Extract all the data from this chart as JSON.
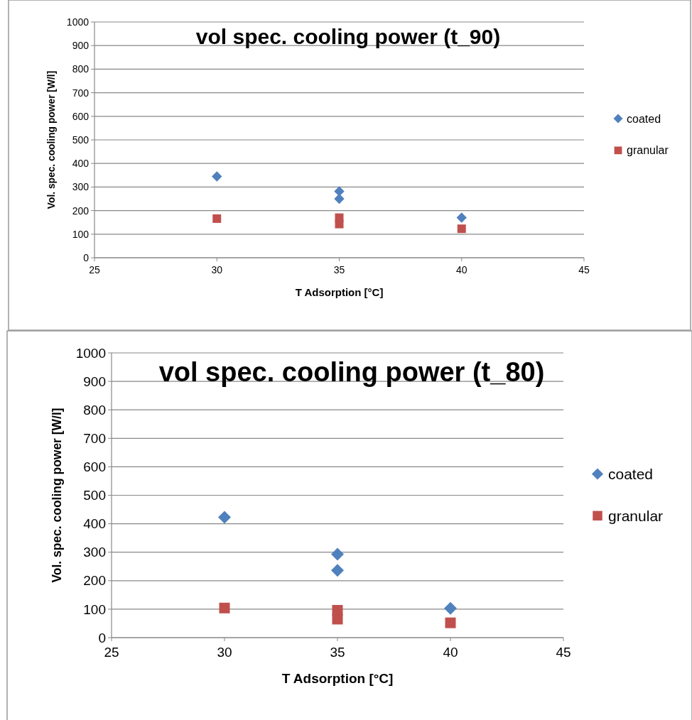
{
  "chart_data": [
    {
      "type": "scatter",
      "title": "vol spec. cooling power (t_90)",
      "xlabel": "T Adsorption [°C]",
      "ylabel": "Vol. spec. cooling power [W/l]",
      "xlim": [
        25,
        45
      ],
      "xticks": [
        25,
        30,
        35,
        40,
        45
      ],
      "ylim": [
        0,
        1000
      ],
      "yticks": [
        0,
        100,
        200,
        300,
        400,
        500,
        600,
        700,
        800,
        900,
        1000
      ],
      "grid": "y",
      "legend": "right",
      "series": [
        {
          "name": "coated",
          "color": "#4f81bd",
          "marker": "diamond",
          "x": [
            30,
            35,
            35,
            40
          ],
          "values": [
            345,
            282,
            250,
            170
          ]
        },
        {
          "name": "granular",
          "color": "#c0504d",
          "marker": "square",
          "x": [
            30,
            35,
            35,
            40
          ],
          "values": [
            166,
            170,
            143,
            123
          ]
        }
      ]
    },
    {
      "type": "scatter",
      "title": "vol spec. cooling power (t_80)",
      "xlabel": "T Adsorption [°C]",
      "ylabel": "Vol. spec. cooling power [W/l]",
      "xlim": [
        25,
        45
      ],
      "xticks": [
        25,
        30,
        35,
        40,
        45
      ],
      "ylim": [
        0,
        1000
      ],
      "yticks": [
        0,
        100,
        200,
        300,
        400,
        500,
        600,
        700,
        800,
        900,
        1000
      ],
      "grid": "y",
      "legend": "right",
      "series": [
        {
          "name": "coated",
          "color": "#4f81bd",
          "marker": "diamond",
          "x": [
            30,
            35,
            35,
            40
          ],
          "values": [
            423,
            293,
            236,
            103
          ]
        },
        {
          "name": "granular",
          "color": "#c0504d",
          "marker": "square",
          "x": [
            30,
            35,
            35,
            40
          ],
          "values": [
            104,
            96,
            65,
            52
          ]
        }
      ]
    }
  ]
}
